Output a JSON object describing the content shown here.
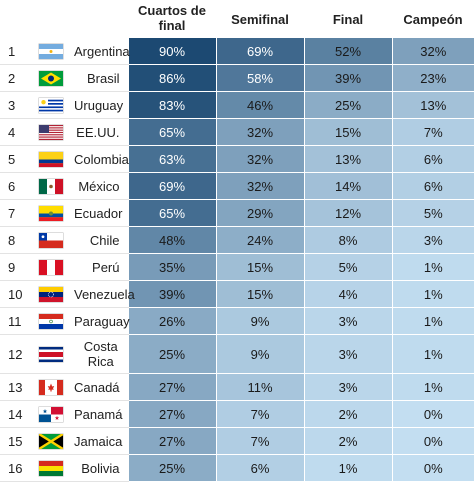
{
  "headers": [
    "",
    "",
    "",
    "Cuartos de final",
    "Semifinal",
    "Final",
    "Campeón"
  ],
  "rows": [
    {
      "rank": "1",
      "flag": "argentina-flag-icon",
      "country": "Argentina",
      "values": [
        "90%",
        "69%",
        "52%",
        "32%"
      ]
    },
    {
      "rank": "2",
      "flag": "brazil-flag-icon",
      "country": "Brasil",
      "values": [
        "86%",
        "58%",
        "39%",
        "23%"
      ]
    },
    {
      "rank": "3",
      "flag": "uruguay-flag-icon",
      "country": "Uruguay",
      "values": [
        "83%",
        "46%",
        "25%",
        "13%"
      ]
    },
    {
      "rank": "4",
      "flag": "usa-flag-icon",
      "country": "EE.UU.",
      "values": [
        "65%",
        "32%",
        "15%",
        "7%"
      ]
    },
    {
      "rank": "5",
      "flag": "colombia-flag-icon",
      "country": "Colombia",
      "values": [
        "63%",
        "32%",
        "13%",
        "6%"
      ]
    },
    {
      "rank": "6",
      "flag": "mexico-flag-icon",
      "country": "México",
      "values": [
        "69%",
        "32%",
        "14%",
        "6%"
      ]
    },
    {
      "rank": "7",
      "flag": "ecuador-flag-icon",
      "country": "Ecuador",
      "values": [
        "65%",
        "29%",
        "12%",
        "5%"
      ]
    },
    {
      "rank": "8",
      "flag": "chile-flag-icon",
      "country": "Chile",
      "values": [
        "48%",
        "24%",
        "8%",
        "3%"
      ]
    },
    {
      "rank": "9",
      "flag": "peru-flag-icon",
      "country": "Perú",
      "values": [
        "35%",
        "15%",
        "5%",
        "1%"
      ]
    },
    {
      "rank": "10",
      "flag": "venezuela-flag-icon",
      "country": "Venezuela",
      "values": [
        "39%",
        "15%",
        "4%",
        "1%"
      ]
    },
    {
      "rank": "11",
      "flag": "paraguay-flag-icon",
      "country": "Paraguay",
      "values": [
        "26%",
        "9%",
        "3%",
        "1%"
      ]
    },
    {
      "rank": "12",
      "flag": "costa-rica-flag-icon",
      "country": "Costa Rica",
      "values": [
        "25%",
        "9%",
        "3%",
        "1%"
      ]
    },
    {
      "rank": "13",
      "flag": "canada-flag-icon",
      "country": "Canadá",
      "values": [
        "27%",
        "11%",
        "3%",
        "1%"
      ]
    },
    {
      "rank": "14",
      "flag": "panama-flag-icon",
      "country": "Panamá",
      "values": [
        "27%",
        "7%",
        "2%",
        "0%"
      ]
    },
    {
      "rank": "15",
      "flag": "jamaica-flag-icon",
      "country": "Jamaica",
      "values": [
        "27%",
        "7%",
        "2%",
        "0%"
      ]
    },
    {
      "rank": "16",
      "flag": "bolivia-flag-icon",
      "country": "Bolivia",
      "values": [
        "25%",
        "6%",
        "1%",
        "0%"
      ]
    }
  ],
  "colors": {
    "scale_low": "#c3def1",
    "scale_high": "#0c3b66",
    "text_dark": "#1a1a1a",
    "text_light": "#ffffff"
  }
}
